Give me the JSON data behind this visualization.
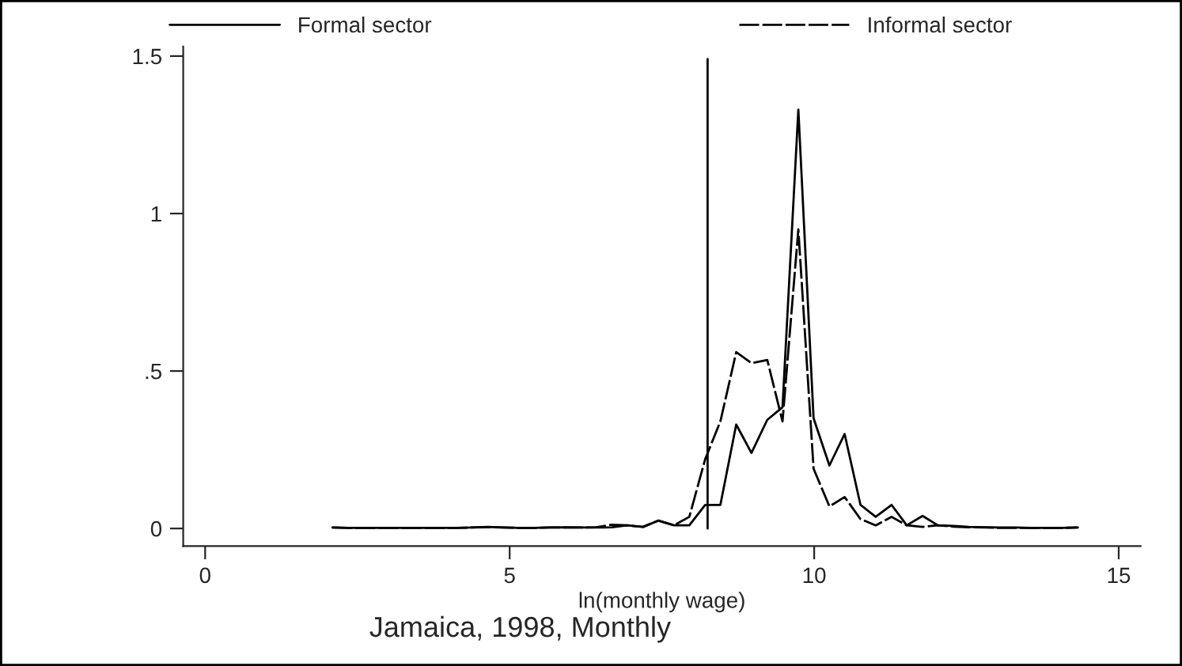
{
  "chart_data": {
    "type": "line",
    "xlabel": "ln(monthly wage)",
    "annotations": [
      "Jamaica, 1998, Monthly"
    ],
    "x": [
      2.09,
      2.35,
      2.6,
      2.85,
      3.11,
      3.36,
      3.62,
      3.87,
      4.13,
      4.38,
      4.64,
      4.89,
      5.15,
      5.4,
      5.66,
      5.91,
      6.17,
      6.42,
      6.68,
      6.93,
      7.19,
      7.44,
      7.7,
      7.95,
      8.21,
      8.46,
      8.72,
      8.97,
      9.23,
      9.48,
      9.74,
      9.99,
      10.25,
      10.5,
      10.76,
      11.01,
      11.27,
      11.52,
      11.78,
      12.03,
      12.29,
      12.54,
      12.8,
      13.05,
      13.31,
      13.56,
      13.82,
      14.07,
      14.33
    ],
    "series": [
      {
        "name": "Formal sector",
        "color": "#000000",
        "line_style": "solid",
        "values": [
          0.003,
          0.002,
          0.002,
          0.002,
          0.002,
          0.002,
          0.002,
          0.002,
          0.002,
          0.003,
          0.005,
          0.003,
          0.002,
          0.002,
          0.003,
          0.004,
          0.003,
          0.003,
          0.004,
          0.01,
          0.005,
          0.025,
          0.01,
          0.01,
          0.075,
          0.075,
          0.33,
          0.24,
          0.345,
          0.385,
          1.33,
          0.35,
          0.2,
          0.3,
          0.075,
          0.037,
          0.075,
          0.01,
          0.04,
          0.01,
          0.008,
          0.005,
          0.004,
          0.003,
          0.003,
          0.002,
          0.002,
          0.002,
          0.003
        ]
      },
      {
        "name": "Informal sector",
        "color": "#000000",
        "line_style": "dashed",
        "values": [
          0.003,
          0.002,
          0.002,
          0.002,
          0.002,
          0.002,
          0.002,
          0.002,
          0.002,
          0.003,
          0.004,
          0.003,
          0.002,
          0.002,
          0.003,
          0.003,
          0.003,
          0.004,
          0.012,
          0.01,
          0.005,
          0.025,
          0.01,
          0.037,
          0.22,
          0.34,
          0.56,
          0.525,
          0.535,
          0.34,
          0.95,
          0.19,
          0.07,
          0.1,
          0.03,
          0.01,
          0.037,
          0.01,
          0.005,
          0.01,
          0.006,
          0.004,
          0.003,
          0.002,
          0.002,
          0.002,
          0.002,
          0.002,
          0.003
        ]
      }
    ],
    "ref_lines": [
      {
        "axis": "x",
        "value": 8.25,
        "color": "#000000"
      }
    ],
    "xlim": [
      -0.36,
      15.36
    ],
    "ylim": [
      -0.056,
      1.53
    ],
    "xticks": [
      0,
      5,
      10,
      15
    ],
    "yticks": [
      0,
      {
        "value": 0.5,
        "label": ".5"
      },
      1,
      1.5
    ],
    "grid": false,
    "legend": "top",
    "marker": "none"
  }
}
